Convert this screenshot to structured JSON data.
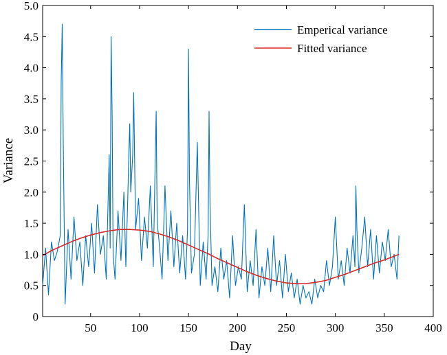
{
  "chart_data": {
    "type": "line",
    "xlabel": "Day",
    "ylabel": "Variance",
    "xlim": [
      1,
      400
    ],
    "ylim": [
      0,
      5
    ],
    "xticks": [
      50,
      100,
      150,
      200,
      250,
      300,
      350,
      400
    ],
    "yticks": [
      0,
      0.5,
      1.0,
      1.5,
      2.0,
      2.5,
      3.0,
      3.5,
      4.0,
      4.5,
      5.0
    ],
    "ytick_labels": [
      "0",
      "0.5",
      "1.0",
      "1.5",
      "2.0",
      "2.5",
      "3.0",
      "3.5",
      "4.0",
      "4.5",
      "5.0"
    ],
    "grid": false,
    "legend_position": "top-right",
    "series": [
      {
        "name": "Emperical variance",
        "color": "#0072BD",
        "x": [
          1,
          4,
          7,
          10,
          13,
          16,
          19,
          20,
          21,
          22,
          24,
          27,
          30,
          33,
          36,
          39,
          42,
          45,
          48,
          51,
          54,
          57,
          60,
          63,
          66,
          69,
          70,
          71,
          72,
          73,
          75,
          78,
          81,
          84,
          86,
          88,
          89,
          90,
          91,
          93,
          94,
          96,
          99,
          102,
          105,
          108,
          111,
          114,
          116,
          117,
          118,
          120,
          123,
          126,
          129,
          132,
          135,
          138,
          141,
          144,
          147,
          149,
          150,
          151,
          153,
          156,
          159,
          162,
          165,
          168,
          170,
          171,
          172,
          174,
          177,
          180,
          183,
          186,
          189,
          192,
          195,
          198,
          201,
          204,
          207,
          210,
          213,
          216,
          219,
          222,
          225,
          228,
          231,
          234,
          237,
          240,
          243,
          246,
          249,
          252,
          255,
          258,
          261,
          264,
          267,
          270,
          273,
          276,
          279,
          282,
          285,
          288,
          291,
          294,
          297,
          300,
          303,
          306,
          309,
          312,
          315,
          318,
          320,
          321,
          322,
          324,
          327,
          330,
          333,
          336,
          339,
          342,
          345,
          348,
          351,
          354,
          357,
          360,
          363,
          365
        ],
        "values": [
          0.5,
          1.1,
          0.35,
          1.2,
          0.9,
          1.05,
          1.3,
          3.8,
          4.7,
          2.9,
          0.2,
          1.4,
          0.6,
          1.6,
          0.9,
          1.2,
          0.5,
          1.3,
          0.8,
          1.5,
          0.7,
          1.8,
          1.0,
          1.3,
          0.6,
          2.6,
          1.1,
          4.5,
          3.2,
          1.0,
          0.6,
          1.7,
          0.9,
          2.0,
          0.8,
          1.9,
          2.6,
          3.1,
          2.0,
          2.6,
          3.6,
          1.4,
          1.9,
          0.9,
          1.6,
          1.1,
          2.1,
          0.8,
          2.5,
          3.3,
          1.5,
          1.2,
          0.6,
          2.1,
          0.9,
          1.7,
          0.8,
          1.5,
          0.7,
          1.3,
          0.6,
          1.4,
          4.3,
          2.2,
          0.7,
          1.0,
          2.8,
          0.5,
          1.2,
          0.6,
          1.3,
          3.3,
          1.8,
          0.5,
          0.8,
          0.4,
          1.1,
          0.6,
          0.9,
          0.3,
          1.3,
          0.5,
          0.8,
          0.6,
          1.8,
          0.4,
          0.9,
          0.5,
          1.4,
          0.3,
          0.8,
          0.5,
          1.1,
          0.4,
          1.3,
          0.5,
          0.9,
          0.3,
          1.0,
          0.4,
          0.7,
          0.3,
          0.6,
          0.2,
          0.5,
          0.3,
          0.4,
          0.2,
          0.6,
          0.3,
          0.5,
          0.4,
          0.9,
          0.5,
          0.8,
          1.6,
          0.6,
          0.9,
          0.5,
          1.1,
          0.7,
          1.3,
          0.8,
          2.1,
          1.4,
          0.7,
          1.1,
          1.6,
          0.8,
          1.4,
          0.6,
          1.3,
          0.7,
          1.2,
          0.9,
          1.4,
          0.8,
          1.0,
          0.6,
          1.3
        ]
      },
      {
        "name": "Fitted variance",
        "color": "#D62728",
        "x": [
          1,
          10,
          20,
          30,
          40,
          50,
          60,
          70,
          80,
          90,
          100,
          110,
          120,
          130,
          140,
          150,
          160,
          170,
          180,
          190,
          200,
          210,
          220,
          230,
          240,
          250,
          260,
          270,
          280,
          290,
          300,
          310,
          320,
          330,
          340,
          350,
          360,
          365
        ],
        "values": [
          0.98,
          1.06,
          1.13,
          1.2,
          1.26,
          1.31,
          1.35,
          1.38,
          1.4,
          1.4,
          1.39,
          1.37,
          1.33,
          1.28,
          1.22,
          1.15,
          1.08,
          1.01,
          0.93,
          0.86,
          0.79,
          0.72,
          0.66,
          0.61,
          0.57,
          0.54,
          0.53,
          0.53,
          0.55,
          0.58,
          0.63,
          0.68,
          0.74,
          0.8,
          0.86,
          0.91,
          0.97,
          1.0
        ]
      }
    ]
  }
}
